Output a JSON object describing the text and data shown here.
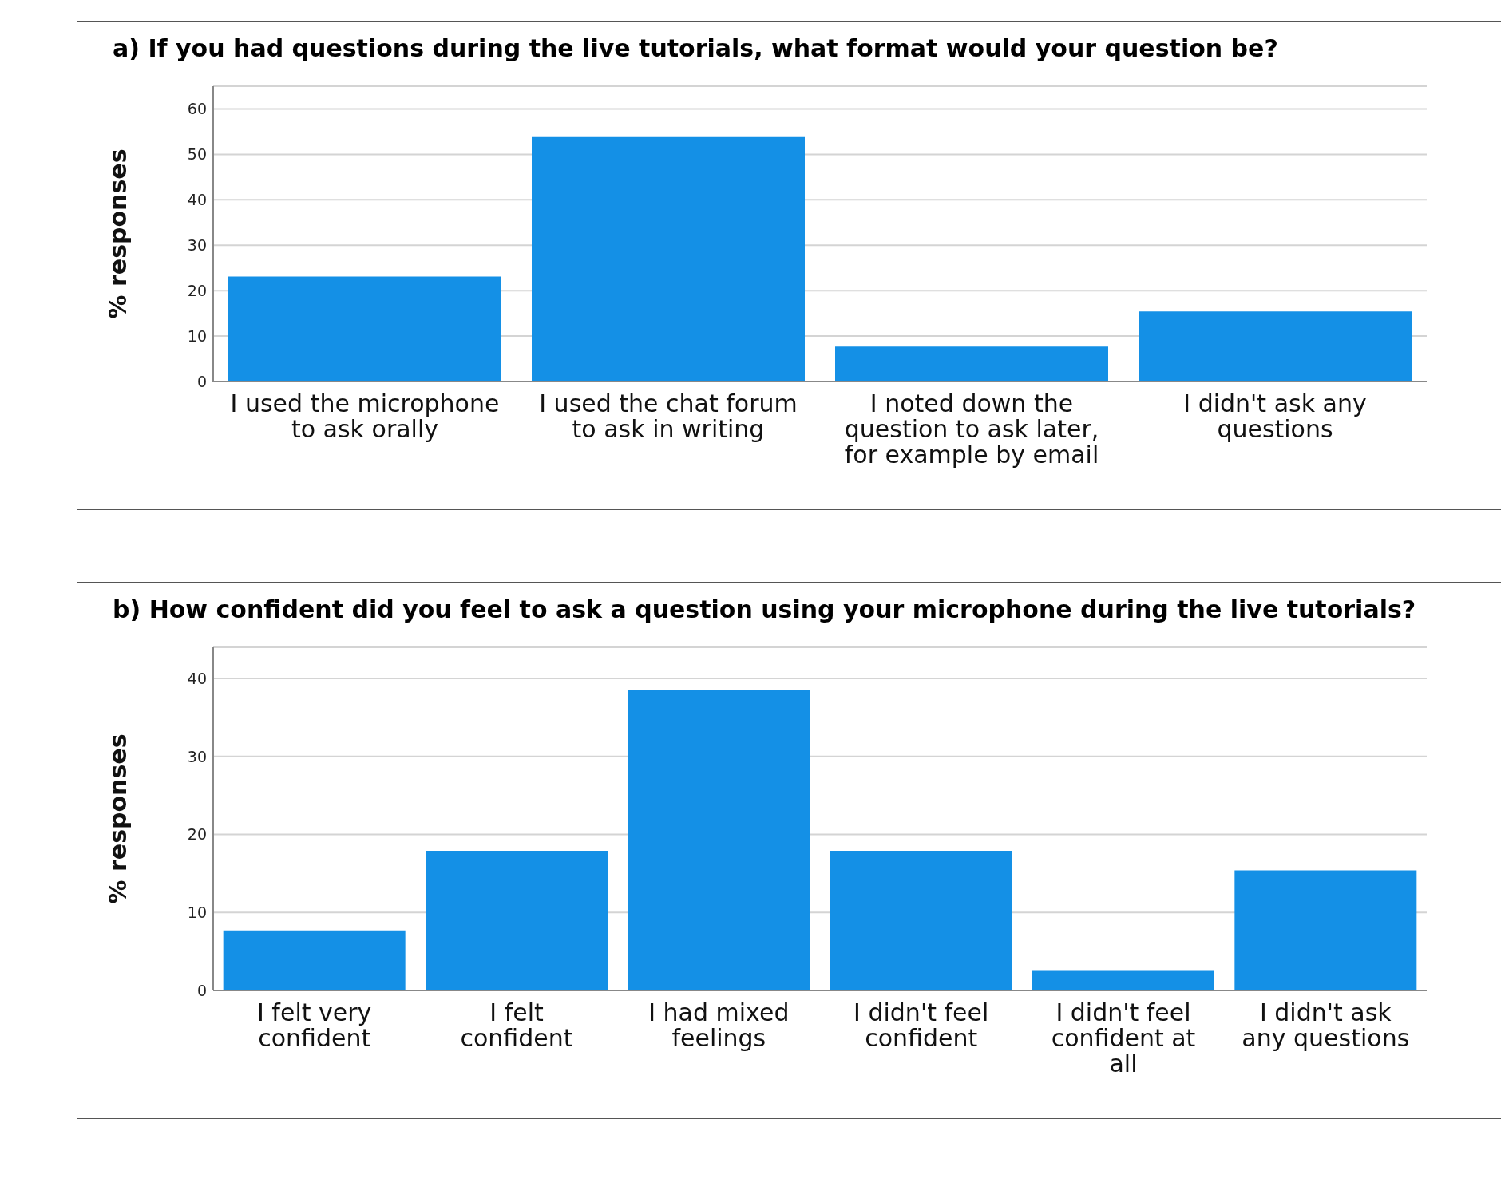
{
  "chart_data": [
    {
      "type": "bar",
      "title": "a) If you had questions during the live tutorials, what format would your question be?",
      "ylabel": "% responses",
      "categories": [
        "I used the microphone to ask orally",
        "I used the chat forum to ask in writing",
        "I noted down the question to ask later, for example by email",
        "I didn't ask any questions"
      ],
      "values": [
        23.1,
        53.8,
        7.7,
        15.4
      ],
      "color": "#1490e6",
      "ylim": [
        0,
        65
      ],
      "yticks": [
        0,
        10,
        20,
        30,
        40,
        50,
        60
      ],
      "grid": "y"
    },
    {
      "type": "bar",
      "title": "b) How confident did you feel to ask a question using your microphone during the live tutorials?",
      "ylabel": "% responses",
      "categories": [
        "I felt very confident",
        "I felt confident",
        "I had mixed feelings",
        "I didn't feel confident",
        "I didn't feel confident at all",
        "I didn't ask any questions"
      ],
      "values": [
        7.7,
        17.9,
        38.5,
        17.9,
        2.6,
        15.4
      ],
      "color": "#1490e6",
      "ylim": [
        0,
        44
      ],
      "yticks": [
        0,
        10,
        20,
        30,
        40
      ],
      "grid": "y"
    }
  ]
}
